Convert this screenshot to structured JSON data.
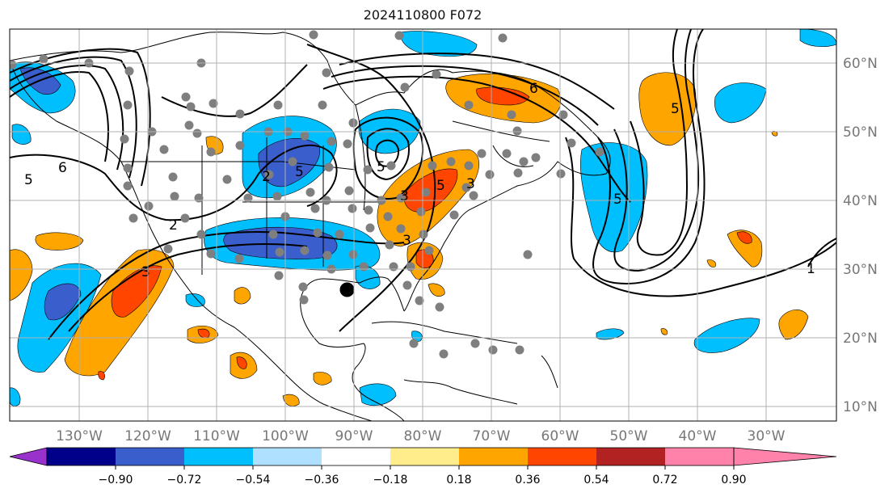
{
  "title": "2024110800 F072",
  "longitude_labels": [
    "130°W",
    "120°W",
    "110°W",
    "100°W",
    "90°W",
    "80°W",
    "70°W",
    "60°W",
    "50°W",
    "40°W",
    "30°W"
  ],
  "latitude_labels": [
    "60°N",
    "50°N",
    "40°N",
    "30°N",
    "20°N",
    "10°N"
  ],
  "colorbar": {
    "ticks": [
      "−0.90",
      "−0.72",
      "−0.54",
      "−0.36",
      "−0.18",
      "0.18",
      "0.36",
      "0.54",
      "0.72",
      "0.90"
    ],
    "colors": [
      "#9932cc",
      "#00008b",
      "#3a5fcd",
      "#00bfff",
      "#afe0ff",
      "#ffffff",
      "#ffec8b",
      "#ffa500",
      "#ff4500",
      "#b22222",
      "#ff82ab"
    ]
  },
  "contour_labels": [
    "6",
    "5",
    "5",
    "6",
    "5",
    "3",
    "3",
    "2",
    "2",
    "3",
    "3",
    "5",
    "5",
    "5",
    "1"
  ],
  "marker": {
    "lon": -91,
    "lat": 27
  }
}
